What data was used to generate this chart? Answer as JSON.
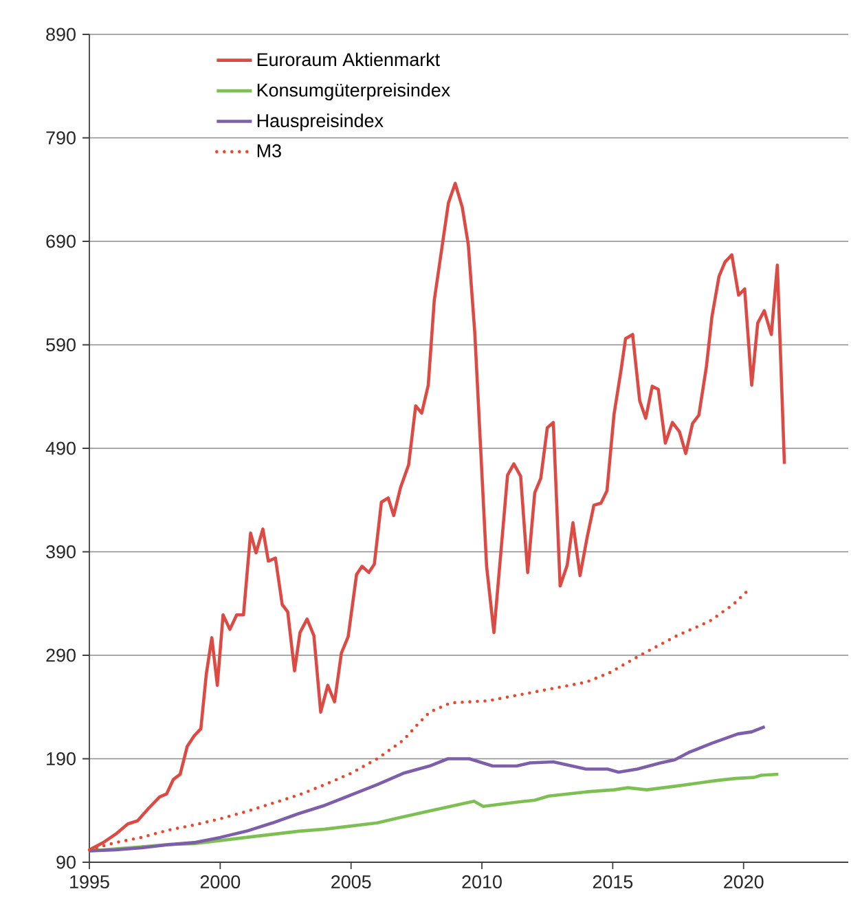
{
  "chart_data": {
    "type": "line",
    "xlim": [
      1995,
      2024
    ],
    "xticks": [
      1995,
      2000,
      2005,
      2010,
      2015,
      2020
    ],
    "ylim": [
      90,
      890
    ],
    "yticks": [
      90,
      190,
      290,
      390,
      490,
      590,
      690,
      790,
      890
    ],
    "grid": "y",
    "legend": "top left",
    "series": [
      {
        "name": "Euroraum Aktienmarkt",
        "color": "#dc4a43",
        "line_style": "solid",
        "x": [
          1995.0,
          1995.53,
          1996.05,
          1996.47,
          1996.84,
          1997.26,
          1997.68,
          1997.95,
          1998.21,
          1998.47,
          1998.74,
          1999.0,
          1999.26,
          1999.47,
          1999.68,
          1999.89,
          2000.11,
          2000.37,
          2000.63,
          2000.89,
          2001.16,
          2001.37,
          2001.63,
          2001.84,
          2002.11,
          2002.37,
          2002.58,
          2002.84,
          2003.05,
          2003.32,
          2003.58,
          2003.84,
          2004.11,
          2004.37,
          2004.63,
          2004.89,
          2005.21,
          2005.42,
          2005.68,
          2005.89,
          2006.16,
          2006.42,
          2006.63,
          2006.89,
          2007.2,
          2007.47,
          2007.7,
          2007.95,
          2008.18,
          2008.72,
          2008.98,
          2009.25,
          2009.48,
          2009.73,
          2010.18,
          2010.46,
          2010.98,
          2011.22,
          2011.48,
          2011.75,
          2012.02,
          2012.25,
          2012.5,
          2012.73,
          2012.99,
          2013.26,
          2013.48,
          2013.75,
          2014.03,
          2014.28,
          2014.55,
          2014.78,
          2015.05,
          2015.32,
          2015.49,
          2015.76,
          2016.03,
          2016.26,
          2016.51,
          2016.74,
          2017.01,
          2017.28,
          2017.55,
          2017.79,
          2018.05,
          2018.29,
          2018.58,
          2018.79,
          2019.06,
          2019.29,
          2019.55,
          2019.81,
          2020.04,
          2020.31,
          2020.54,
          2020.79,
          2021.06,
          2021.29,
          2021.56
        ],
        "values": [
          102,
          109,
          118,
          127,
          130,
          142,
          153,
          156,
          170,
          175,
          202,
          212,
          219,
          272,
          307,
          261,
          329,
          315,
          329,
          329,
          408,
          389,
          412,
          381,
          384,
          339,
          332,
          275,
          312,
          325,
          309,
          235,
          261,
          245,
          292,
          308,
          368,
          376,
          370,
          378,
          438,
          442,
          425,
          452,
          474,
          531,
          524,
          551,
          633,
          727,
          746,
          723,
          687,
          601,
          376,
          312,
          464,
          475,
          463,
          370,
          447,
          461,
          510,
          515,
          357,
          377,
          418,
          367,
          405,
          435,
          437,
          449,
          523,
          566,
          596,
          600,
          536,
          519,
          550,
          547,
          495,
          515,
          506,
          485,
          514,
          522,
          569,
          617,
          656,
          670,
          677,
          638,
          644,
          551,
          611,
          623,
          600,
          667,
          475
        ]
      },
      {
        "name": "Konsumgüterpreisindex",
        "color": "#7dbf52",
        "line_style": "solid",
        "x": [
          1995,
          1996,
          1997,
          1998,
          1999,
          2000,
          2001,
          2002,
          2003,
          2004,
          2005,
          2006,
          2006.84,
          2007.9,
          2009.16,
          2009.7,
          2010.05,
          2011.3,
          2012.02,
          2012.55,
          2013.98,
          2015.05,
          2015.58,
          2016.3,
          2017.55,
          2018.97,
          2019.69,
          2020.4,
          2020.67,
          2021.33
        ],
        "values": [
          101,
          103,
          105,
          107,
          108,
          111,
          114,
          117,
          120,
          122,
          125,
          128,
          133,
          139,
          146,
          149,
          144,
          148,
          150,
          154,
          158,
          160,
          162,
          160,
          164,
          169,
          171,
          172,
          174,
          175
        ]
      },
      {
        "name": "Hauspreisindex",
        "color": "#7d5ea8",
        "line_style": "solid",
        "x": [
          1995,
          1996,
          1997,
          1998,
          1999,
          2000,
          2001,
          2002,
          2003,
          2004,
          2005,
          2006,
          2007,
          2008,
          2008.7,
          2009.52,
          2010.41,
          2011.33,
          2011.84,
          2012.73,
          2013.98,
          2014.8,
          2015.22,
          2015.94,
          2016.83,
          2017.37,
          2017.9,
          2018.79,
          2019.78,
          2020.31,
          2020.81
        ],
        "values": [
          101,
          102,
          104,
          107,
          109,
          114,
          120,
          128,
          137,
          145,
          155,
          165,
          176,
          183,
          190,
          190,
          183,
          183,
          186,
          187,
          180,
          180,
          177,
          180,
          186,
          189,
          196,
          205,
          214,
          216,
          221
        ]
      },
      {
        "name": "M3",
        "color": "#e8472a",
        "line_style": "dotted",
        "x": [
          1995,
          1996,
          1997,
          1998,
          1999,
          2000,
          2001,
          2002,
          2003,
          2004,
          2005,
          2006,
          2007,
          2007.5,
          2008,
          2008.8,
          2010.23,
          2012.1,
          2013.98,
          2014.87,
          2016.12,
          2017.46,
          2018.71,
          2019.6,
          2020.26
        ],
        "values": [
          102,
          109,
          114,
          121,
          126,
          132,
          139,
          147,
          155,
          165,
          176,
          190,
          208,
          222,
          235,
          244,
          246,
          255,
          264,
          273,
          291,
          309,
          323,
          339,
          355
        ]
      }
    ]
  }
}
